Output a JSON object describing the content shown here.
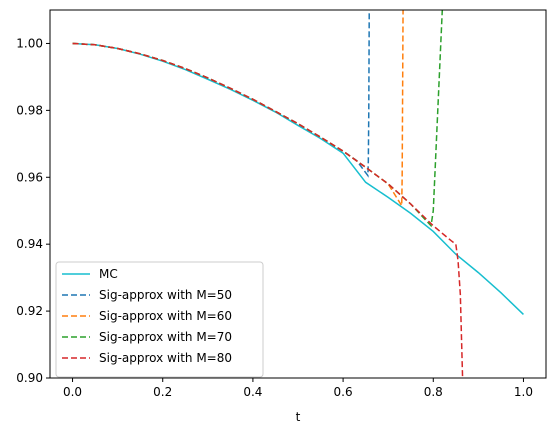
{
  "chart_data": {
    "type": "line",
    "title": "",
    "xlabel": "t",
    "ylabel": "",
    "xlim": [
      -0.05,
      1.05
    ],
    "ylim": [
      0.9,
      1.01
    ],
    "xticks": [
      "0.0",
      "0.2",
      "0.4",
      "0.6",
      "0.8",
      "1.0"
    ],
    "yticks": [
      "0.90",
      "0.92",
      "0.94",
      "0.96",
      "0.98",
      "1.00"
    ],
    "grid": false,
    "legend_position": "lower-left",
    "series": [
      {
        "name": "MC",
        "color": "#17becf",
        "dash": "solid",
        "x": [
          0.0,
          0.05,
          0.1,
          0.15,
          0.2,
          0.25,
          0.3,
          0.35,
          0.4,
          0.45,
          0.5,
          0.55,
          0.6,
          0.65,
          0.7,
          0.75,
          0.8,
          0.85,
          0.9,
          0.95,
          1.0
        ],
        "y": [
          1.0,
          0.9996,
          0.9985,
          0.9968,
          0.9947,
          0.9922,
          0.9893,
          0.9863,
          0.983,
          0.9795,
          0.9755,
          0.9716,
          0.9672,
          0.9585,
          0.954,
          0.9492,
          0.9438,
          0.937,
          0.9315,
          0.9255,
          0.919
        ]
      },
      {
        "name": "Sig-approx with M=50",
        "color": "#1f77b4",
        "dash": "dashed",
        "x": [
          0.0,
          0.05,
          0.1,
          0.15,
          0.2,
          0.25,
          0.3,
          0.35,
          0.4,
          0.45,
          0.5,
          0.55,
          0.6,
          0.63,
          0.655,
          0.656,
          0.657,
          0.658
        ],
        "y": [
          1.0,
          0.9996,
          0.9985,
          0.9969,
          0.9949,
          0.9925,
          0.9897,
          0.9866,
          0.9833,
          0.9797,
          0.976,
          0.972,
          0.9678,
          0.965,
          0.9605,
          0.965,
          0.98,
          1.01
        ]
      },
      {
        "name": "Sig-approx with M=60",
        "color": "#ff7f0e",
        "dash": "dashed",
        "x": [
          0.0,
          0.05,
          0.1,
          0.15,
          0.2,
          0.25,
          0.3,
          0.35,
          0.4,
          0.45,
          0.5,
          0.55,
          0.6,
          0.65,
          0.7,
          0.73,
          0.731,
          0.733
        ],
        "y": [
          1.0,
          0.9996,
          0.9985,
          0.9969,
          0.9949,
          0.9925,
          0.9897,
          0.9866,
          0.9833,
          0.9797,
          0.976,
          0.972,
          0.9678,
          0.963,
          0.958,
          0.9515,
          0.96,
          1.01
        ]
      },
      {
        "name": "Sig-approx with M=70",
        "color": "#2ca02c",
        "dash": "dashed",
        "x": [
          0.0,
          0.05,
          0.1,
          0.15,
          0.2,
          0.25,
          0.3,
          0.35,
          0.4,
          0.45,
          0.5,
          0.55,
          0.6,
          0.65,
          0.7,
          0.75,
          0.795,
          0.8,
          0.81,
          0.82
        ],
        "y": [
          1.0,
          0.9996,
          0.9985,
          0.9969,
          0.9949,
          0.9925,
          0.9897,
          0.9866,
          0.9833,
          0.9797,
          0.976,
          0.972,
          0.9678,
          0.963,
          0.958,
          0.952,
          0.9455,
          0.95,
          0.98,
          1.01
        ]
      },
      {
        "name": "Sig-approx with M=80",
        "color": "#d62728",
        "dash": "dashed",
        "x": [
          0.0,
          0.05,
          0.1,
          0.15,
          0.2,
          0.25,
          0.3,
          0.35,
          0.4,
          0.45,
          0.5,
          0.55,
          0.6,
          0.65,
          0.7,
          0.75,
          0.8,
          0.84,
          0.85,
          0.855,
          0.86,
          0.863,
          0.865
        ],
        "y": [
          1.0,
          0.9996,
          0.9985,
          0.9969,
          0.9949,
          0.9925,
          0.9897,
          0.9866,
          0.9833,
          0.9797,
          0.976,
          0.972,
          0.9678,
          0.963,
          0.958,
          0.952,
          0.9455,
          0.941,
          0.94,
          0.935,
          0.925,
          0.91,
          0.9
        ]
      }
    ]
  }
}
